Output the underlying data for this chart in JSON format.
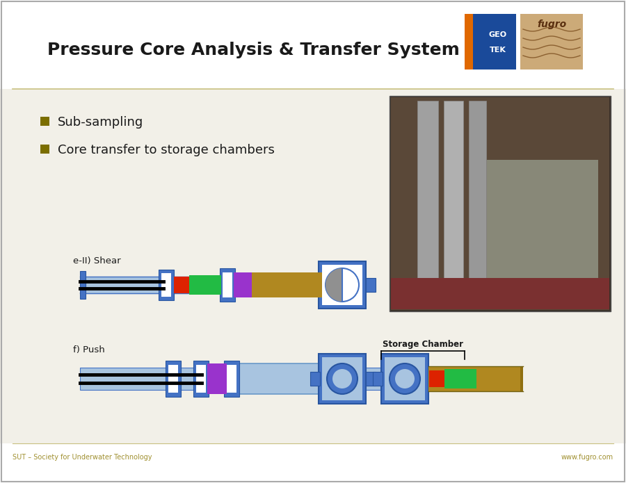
{
  "title": "Pressure Core Analysis & Transfer System",
  "slide_bg": "#F2F0E8",
  "content_bg": "#F2F0E8",
  "title_color": "#1a1a1a",
  "title_fontsize": 18,
  "bullet_color": "#7B6E00",
  "bullets": [
    "Sub-sampling",
    "Core transfer to storage chambers"
  ],
  "footer_left": "SUT – Society for Underwater Technology",
  "footer_right": "www.fugro.com",
  "footer_color": "#A09030",
  "footer_fontsize": 7,
  "label_shear": "e-II) Shear",
  "label_push": "f) Push",
  "label_storage": "Storage Chamber",
  "separator_color": "#C8C080",
  "blue": "#4472C4",
  "light_blue": "#A8C4E0",
  "steel_blue": "#6898C8",
  "dark_blue": "#2855A0",
  "gold": "#B08820",
  "dark_gold": "#907010",
  "light_gold": "#C8A840",
  "red": "#DD2200",
  "green": "#22BB44",
  "purple": "#9933CC",
  "black": "#111111",
  "white": "#FFFFFF",
  "gray": "#888888",
  "light_gray": "#CCCCCC"
}
